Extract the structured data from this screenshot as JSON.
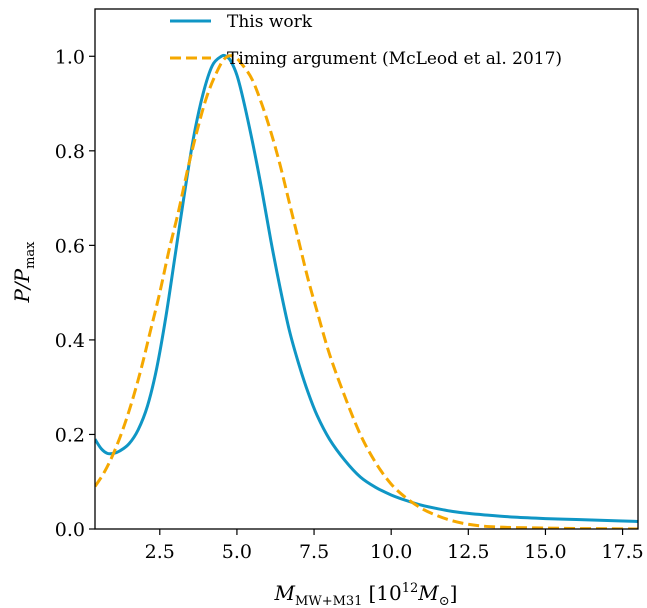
{
  "chart_data": {
    "type": "line",
    "xlabel": "M",
    "xlabel_sub": "MW+M31",
    "xlabel_unit_open": "[10",
    "xlabel_unit_exp": "12",
    "xlabel_unit_m": "M",
    "xlabel_unit_sub": "⊙",
    "xlabel_unit_close": "]",
    "ylabel": "P/P",
    "ylabel_sub": "max",
    "xlim": [
      0.4,
      18
    ],
    "ylim": [
      0,
      1.1
    ],
    "x_ticks": [
      "2.5",
      "5.0",
      "7.5",
      "10.0",
      "12.5",
      "15.0",
      "17.5"
    ],
    "x_tick_values": [
      2.5,
      5.0,
      7.5,
      10.0,
      12.5,
      15.0,
      17.5
    ],
    "y_ticks": [
      "0.0",
      "0.2",
      "0.4",
      "0.6",
      "0.8",
      "1.0"
    ],
    "y_tick_values": [
      0.0,
      0.2,
      0.4,
      0.6,
      0.8,
      1.0
    ],
    "legend_position": "top-center",
    "series": [
      {
        "name": "This work",
        "color": "#0f96c5",
        "style": "solid",
        "x": [
          0.4,
          0.6,
          0.8,
          1.0,
          1.2,
          1.5,
          1.8,
          2.1,
          2.4,
          2.7,
          3.0,
          3.3,
          3.6,
          3.9,
          4.2,
          4.5,
          4.65,
          4.8,
          5.0,
          5.2,
          5.5,
          5.8,
          6.1,
          6.4,
          6.7,
          7.0,
          7.3,
          7.6,
          8.0,
          8.5,
          9.0,
          9.5,
          10.0,
          10.5,
          11.0,
          11.5,
          12.0,
          12.5,
          13.0,
          14.0,
          15.0,
          16.0,
          17.0,
          18.0
        ],
        "y": [
          0.19,
          0.17,
          0.16,
          0.16,
          0.165,
          0.18,
          0.21,
          0.26,
          0.34,
          0.45,
          0.58,
          0.71,
          0.83,
          0.92,
          0.98,
          1.0,
          1.0,
          0.99,
          0.96,
          0.91,
          0.82,
          0.72,
          0.61,
          0.51,
          0.42,
          0.35,
          0.29,
          0.24,
          0.19,
          0.145,
          0.11,
          0.088,
          0.072,
          0.06,
          0.05,
          0.043,
          0.037,
          0.033,
          0.03,
          0.025,
          0.022,
          0.02,
          0.018,
          0.016
        ]
      },
      {
        "name": "Timing argument (McLeod et al. 2017)",
        "color": "#f5a800",
        "style": "dashed",
        "x": [
          0.4,
          0.7,
          1.0,
          1.3,
          1.6,
          1.9,
          2.2,
          2.5,
          2.8,
          3.1,
          3.4,
          3.7,
          4.0,
          4.3,
          4.6,
          4.9,
          5.2,
          5.5,
          5.8,
          6.1,
          6.4,
          6.7,
          7.0,
          7.3,
          7.6,
          8.0,
          8.5,
          9.0,
          9.5,
          10.0,
          10.5,
          11.0,
          11.5,
          12.0,
          12.5,
          13.0,
          13.5,
          14.0,
          15.0,
          16.0,
          17.0,
          18.0
        ],
        "y": [
          0.09,
          0.12,
          0.16,
          0.21,
          0.27,
          0.34,
          0.42,
          0.5,
          0.59,
          0.67,
          0.76,
          0.84,
          0.91,
          0.96,
          0.995,
          1.0,
          0.98,
          0.95,
          0.9,
          0.84,
          0.77,
          0.69,
          0.61,
          0.53,
          0.46,
          0.37,
          0.28,
          0.2,
          0.14,
          0.095,
          0.065,
          0.043,
          0.028,
          0.017,
          0.01,
          0.006,
          0.004,
          0.003,
          0.002,
          0.001,
          0.0005,
          0.0
        ]
      }
    ]
  }
}
